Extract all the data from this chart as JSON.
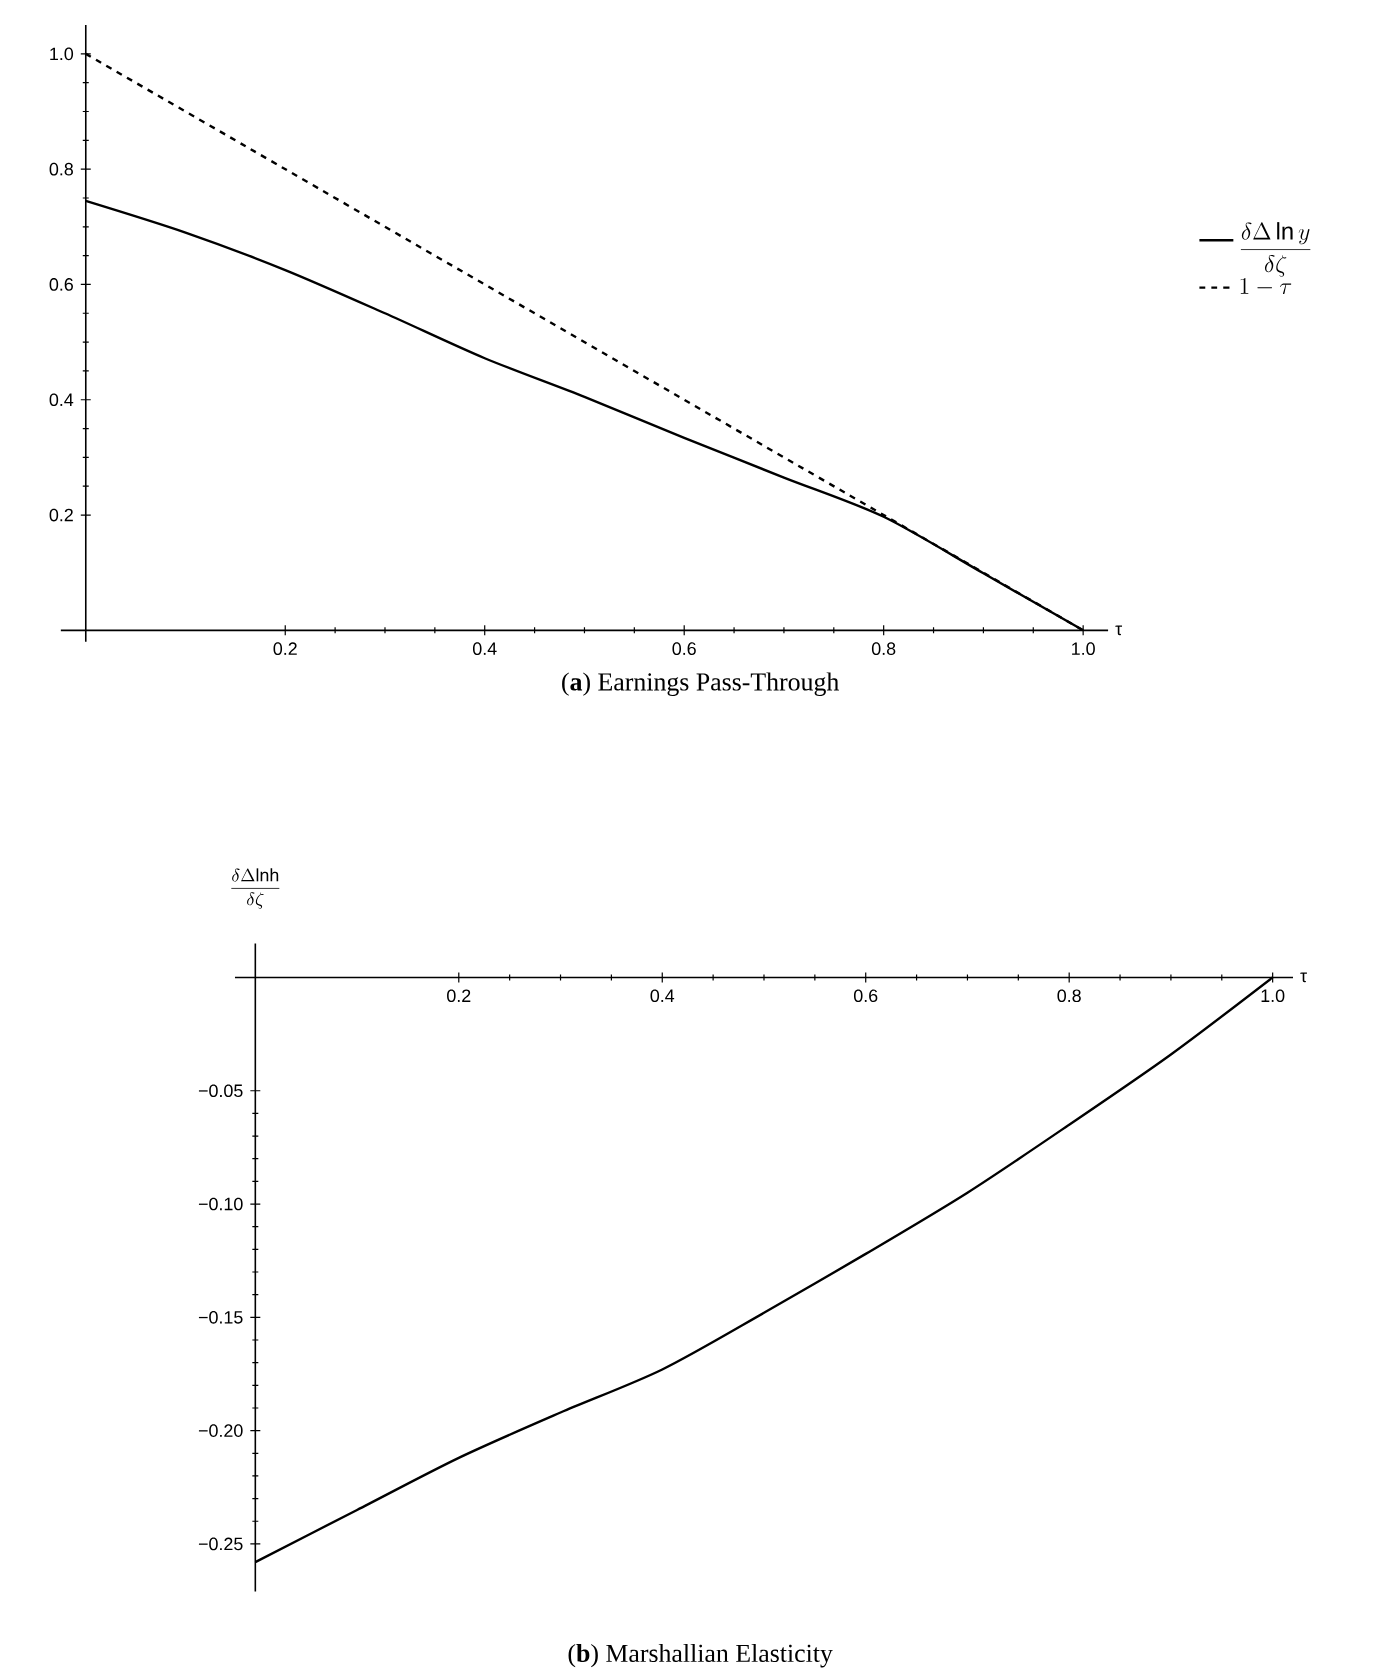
{
  "chart_data": [
    {
      "type": "line",
      "xlabel": "τ",
      "xlim": [
        -0.025,
        1.025
      ],
      "ylim": [
        -0.02,
        1.05
      ],
      "x": [
        0,
        0.1,
        0.2,
        0.3,
        0.4,
        0.5,
        0.6,
        0.7,
        0.8,
        0.9,
        1.0
      ],
      "xticks": [
        0.2,
        0.4,
        0.6,
        0.8,
        {
          "value": 1,
          "label": "1.0"
        }
      ],
      "yticks": [
        0.2,
        0.4,
        0.6,
        0.8,
        {
          "value": 1,
          "label": "1.0"
        }
      ],
      "legend": "right",
      "grid": false,
      "series": [
        {
          "name": "\\frac{\\delta\\Delta \\ln y}{\\delta\\zeta}",
          "color": "#000000",
          "line_style": "solid",
          "values": [
            0.745,
            0.69,
            0.625,
            0.55,
            0.472,
            0.405,
            0.334,
            0.265,
            0.197,
            0.099,
            0
          ]
        },
        {
          "name": "1-\\tau",
          "color": "#000000",
          "line_style": "dashed",
          "x": [
            0,
            1
          ],
          "values": [
            1,
            0
          ]
        }
      ],
      "annotations": [
        "(**a**) Earnings Pass-Through"
      ]
    },
    {
      "type": "line",
      "xlabel": "τ",
      "ylabel": "\\frac{\\delta\\Delta \\mathrm{lnh}}{\\delta\\zeta}",
      "xlim": [
        -0.02,
        1.02
      ],
      "ylim": [
        -0.271,
        0.015
      ],
      "x": [
        0,
        0.1,
        0.2,
        0.3,
        0.4,
        0.5,
        0.6,
        0.7,
        0.8,
        0.9,
        1.0
      ],
      "xticks": [
        0.2,
        0.4,
        0.6,
        0.8,
        {
          "value": 1,
          "label": "1.0"
        }
      ],
      "yticks": [
        {
          "value": -0.25,
          "label": "−0.25"
        },
        {
          "value": -0.2,
          "label": "−0.20"
        },
        {
          "value": -0.15,
          "label": "−0.15"
        },
        {
          "value": -0.1,
          "label": "−0.10"
        },
        {
          "value": -0.05,
          "label": "−0.05"
        }
      ],
      "grid": false,
      "series": [
        {
          "color": "#000000",
          "line_style": "solid",
          "values": [
            -0.258,
            -0.235,
            -0.212,
            -0.192,
            -0.173,
            -0.148,
            -0.122,
            -0.095,
            -0.065,
            -0.034,
            0
          ]
        }
      ],
      "annotations": [
        "(**b**) Marshallian Elasticity"
      ]
    }
  ]
}
